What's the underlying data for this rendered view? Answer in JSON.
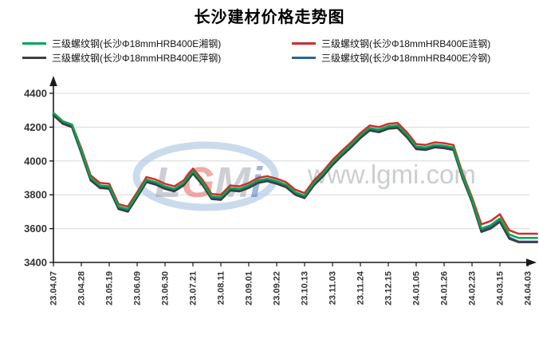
{
  "title": "长沙建材价格走势图",
  "legend": [
    {
      "label": "三级螺纹钢(长沙Φ18mmHRB400E湘钢)",
      "color": "#00a651"
    },
    {
      "label": "三级螺纹钢(长沙Φ18mmHRB400E涟钢)",
      "color": "#cf2e2a"
    },
    {
      "label": "三级螺纹钢(长沙Φ18mmHRB400E萍钢)",
      "color": "#3d3d3d"
    },
    {
      "label": "三级螺纹钢(长沙Φ18mmHRB400E冷钢)",
      "color": "#2e5fa3"
    }
  ],
  "watermark": {
    "letters": [
      {
        "ch": "L",
        "color": "#9aa1a9"
      },
      {
        "ch": "G",
        "color": "#e05a52"
      },
      {
        "ch": "M",
        "color": "#9aa1a9"
      },
      {
        "ch": "i",
        "color": "#4472b8"
      }
    ],
    "ellipse_color": "#b3cce6",
    "url_text": "www.lgmi.com",
    "url_color": "#c2c6ca"
  },
  "chart_data": {
    "type": "line",
    "title": "长沙建材价格走势图",
    "x_labels": [
      "23.04.07",
      "23.04.28",
      "23.05.19",
      "23.06.09",
      "23.06.30",
      "23.07.21",
      "23.08.11",
      "23.09.01",
      "23.09.22",
      "23.10.13",
      "23.11.03",
      "23.11.24",
      "23.12.15",
      "24.01.05",
      "24.01.26",
      "24.02.23",
      "24.03.15",
      "24.04.03"
    ],
    "x_label_every_nth_point": 3,
    "points_per_series": 53,
    "y_axis": {
      "min": 3400,
      "max": 4400,
      "tick_step": 200
    },
    "grid": "horizontal",
    "legend_position": "top",
    "series": [
      {
        "name": "三级螺纹钢(长沙Φ18mmHRB400E冷钢)",
        "color": "#2e5fa3",
        "values": [
          4277,
          4227,
          4207,
          4052,
          3892,
          3847,
          3842,
          3722,
          3707,
          3792,
          3882,
          3867,
          3842,
          3827,
          3862,
          3932,
          3867,
          3782,
          3777,
          3832,
          3827,
          3847,
          3877,
          3887,
          3872,
          3852,
          3807,
          3787,
          3862,
          3917,
          3982,
          4037,
          4087,
          4142,
          4187,
          4177,
          4197,
          4202,
          4147,
          4077,
          4072,
          4087,
          4082,
          4072,
          3902,
          3762,
          3592,
          3612,
          3652,
          3548,
          3523,
          3523,
          3523
        ]
      },
      {
        "name": "三级螺纹钢(长沙Φ18mmHRB400E萍钢)",
        "color": "#3d3d3d",
        "values": [
          4270,
          4220,
          4200,
          4045,
          3885,
          3840,
          3835,
          3715,
          3700,
          3785,
          3875,
          3860,
          3835,
          3820,
          3855,
          3925,
          3860,
          3775,
          3770,
          3825,
          3820,
          3840,
          3870,
          3880,
          3865,
          3845,
          3800,
          3780,
          3855,
          3910,
          3975,
          4030,
          4080,
          4135,
          4180,
          4170,
          4190,
          4195,
          4140,
          4070,
          4065,
          4080,
          4075,
          4065,
          3895,
          3755,
          3580,
          3600,
          3640,
          3540,
          3520,
          3520,
          3520
        ]
      },
      {
        "name": "三级螺纹钢(长沙Φ18mmHRB400E涟钢)",
        "color": "#cf2e2a",
        "values": [
          4285,
          4235,
          4215,
          4075,
          3915,
          3870,
          3865,
          3745,
          3730,
          3815,
          3905,
          3890,
          3865,
          3850,
          3885,
          3955,
          3890,
          3805,
          3800,
          3855,
          3850,
          3870,
          3900,
          3910,
          3895,
          3875,
          3830,
          3810,
          3885,
          3940,
          4005,
          4060,
          4110,
          4165,
          4210,
          4200,
          4220,
          4225,
          4170,
          4100,
          4095,
          4110,
          4105,
          4095,
          3925,
          3785,
          3625,
          3645,
          3685,
          3590,
          3570,
          3570,
          3570
        ]
      },
      {
        "name": "三级螺纹钢(长沙Φ18mmHRB400E湘钢)",
        "color": "#00a651",
        "values": [
          4285,
          4235,
          4215,
          4060,
          3900,
          3855,
          3850,
          3730,
          3715,
          3800,
          3890,
          3875,
          3850,
          3835,
          3870,
          3940,
          3875,
          3790,
          3785,
          3840,
          3835,
          3855,
          3885,
          3895,
          3880,
          3860,
          3815,
          3795,
          3870,
          3925,
          3990,
          4045,
          4095,
          4150,
          4195,
          4185,
          4205,
          4210,
          4155,
          4085,
          4080,
          4095,
          4090,
          4080,
          3910,
          3770,
          3600,
          3620,
          3660,
          3565,
          3545,
          3545,
          3545
        ]
      }
    ]
  }
}
